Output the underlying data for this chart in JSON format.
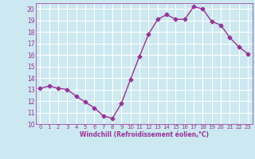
{
  "x": [
    0,
    1,
    2,
    3,
    4,
    5,
    6,
    7,
    8,
    9,
    10,
    11,
    12,
    13,
    14,
    15,
    16,
    17,
    18,
    19,
    20,
    21,
    22,
    23
  ],
  "y": [
    13.1,
    13.3,
    13.1,
    13.0,
    12.4,
    11.9,
    11.4,
    10.7,
    10.5,
    11.8,
    13.9,
    15.9,
    17.8,
    19.1,
    19.5,
    19.1,
    19.1,
    20.2,
    20.0,
    18.9,
    18.6,
    17.5,
    16.7,
    16.1
  ],
  "line_color": "#993399",
  "marker": "D",
  "marker_size": 2.5,
  "bg_color": "#cce8f0",
  "grid_color": "#ffffff",
  "xlabel": "Windchill (Refroidissement éolien,°C)",
  "xlabel_color": "#993399",
  "tick_color": "#993399",
  "ylim": [
    10,
    20.5
  ],
  "xlim": [
    -0.5,
    23.5
  ],
  "yticks": [
    10,
    11,
    12,
    13,
    14,
    15,
    16,
    17,
    18,
    19,
    20
  ],
  "xticks": [
    0,
    1,
    2,
    3,
    4,
    5,
    6,
    7,
    8,
    9,
    10,
    11,
    12,
    13,
    14,
    15,
    16,
    17,
    18,
    19,
    20,
    21,
    22,
    23
  ],
  "spine_color": "#993399",
  "title_color": "#993399"
}
